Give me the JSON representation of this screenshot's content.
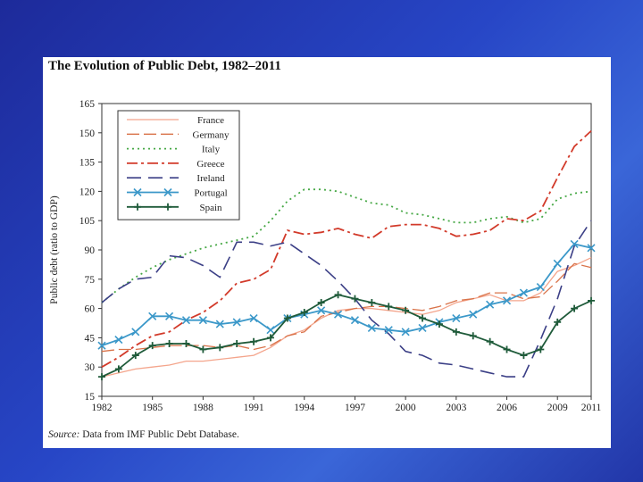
{
  "title": "The Evolution of Public Debt, 1982–2011",
  "source_label": "Source:",
  "source_text": " Data from IMF Public Debt Database.",
  "colors": {
    "France": "#f4a58c",
    "Germany": "#d9734a",
    "Italy": "#46a845",
    "Greece": "#d23a2a",
    "Ireland": "#3b3f86",
    "Portugal": "#3b98c9",
    "Spain": "#1f5b3a"
  },
  "chart_data": {
    "type": "line",
    "title": "The Evolution of Public Debt, 1982–2011",
    "xlabel": "",
    "ylabel": "Public debt (ratio to GDP)",
    "xlim": [
      1982,
      2011
    ],
    "ylim": [
      15,
      165
    ],
    "xticks": [
      "1982",
      "1985",
      "1988",
      "1991",
      "1994",
      "1997",
      "2000",
      "2003",
      "2006",
      "2009",
      "2011"
    ],
    "yticks": [
      "165",
      "150",
      "135",
      "120",
      "105",
      "90",
      "75",
      "60",
      "45",
      "30",
      "15"
    ],
    "legend_position": "top-left",
    "x": [
      1982,
      1983,
      1984,
      1985,
      1986,
      1987,
      1988,
      1989,
      1990,
      1991,
      1992,
      1993,
      1994,
      1995,
      1996,
      1997,
      1998,
      1999,
      2000,
      2001,
      2002,
      2003,
      2004,
      2005,
      2006,
      2007,
      2008,
      2009,
      2010,
      2011
    ],
    "series": [
      {
        "name": "France",
        "values": [
          25,
          27,
          29,
          30,
          31,
          33,
          33,
          34,
          35,
          36,
          40,
          46,
          49,
          55,
          59,
          60,
          60,
          59,
          58,
          57,
          59,
          63,
          65,
          67,
          64,
          64,
          68,
          79,
          82,
          86
        ]
      },
      {
        "name": "Germany",
        "values": [
          38,
          39,
          39,
          40,
          41,
          41,
          41,
          40,
          41,
          39,
          41,
          46,
          48,
          56,
          58,
          60,
          61,
          61,
          60,
          59,
          61,
          64,
          65,
          68,
          68,
          65,
          66,
          74,
          83,
          81
        ]
      },
      {
        "name": "Italy",
        "values": [
          63,
          70,
          76,
          81,
          85,
          88,
          91,
          93,
          95,
          97,
          105,
          115,
          121,
          121,
          120,
          117,
          114,
          113,
          109,
          108,
          106,
          104,
          104,
          106,
          107,
          104,
          106,
          116,
          119,
          120
        ]
      },
      {
        "name": "Greece",
        "values": [
          30,
          35,
          41,
          46,
          48,
          54,
          58,
          64,
          73,
          75,
          80,
          100,
          98,
          99,
          101,
          98,
          96,
          102,
          103,
          103,
          101,
          97,
          98,
          100,
          106,
          105,
          110,
          127,
          143,
          151
        ]
      },
      {
        "name": "Ireland",
        "values": [
          63,
          70,
          75,
          76,
          87,
          86,
          82,
          76,
          94,
          94,
          92,
          94,
          88,
          82,
          74,
          65,
          54,
          47,
          38,
          36,
          32,
          31,
          29,
          27,
          25,
          25,
          44,
          65,
          92,
          105
        ]
      },
      {
        "name": "Portugal",
        "values": [
          41,
          44,
          48,
          56,
          56,
          54,
          54,
          52,
          53,
          55,
          49,
          55,
          57,
          59,
          57,
          54,
          50,
          49,
          48,
          50,
          53,
          55,
          57,
          62,
          64,
          68,
          71,
          83,
          93,
          91
        ]
      },
      {
        "name": "Spain",
        "values": [
          25,
          29,
          36,
          41,
          42,
          42,
          39,
          40,
          42,
          43,
          45,
          55,
          58,
          63,
          67,
          65,
          63,
          61,
          59,
          55,
          52,
          48,
          46,
          43,
          39,
          36,
          39,
          53,
          60,
          64
        ]
      }
    ]
  }
}
